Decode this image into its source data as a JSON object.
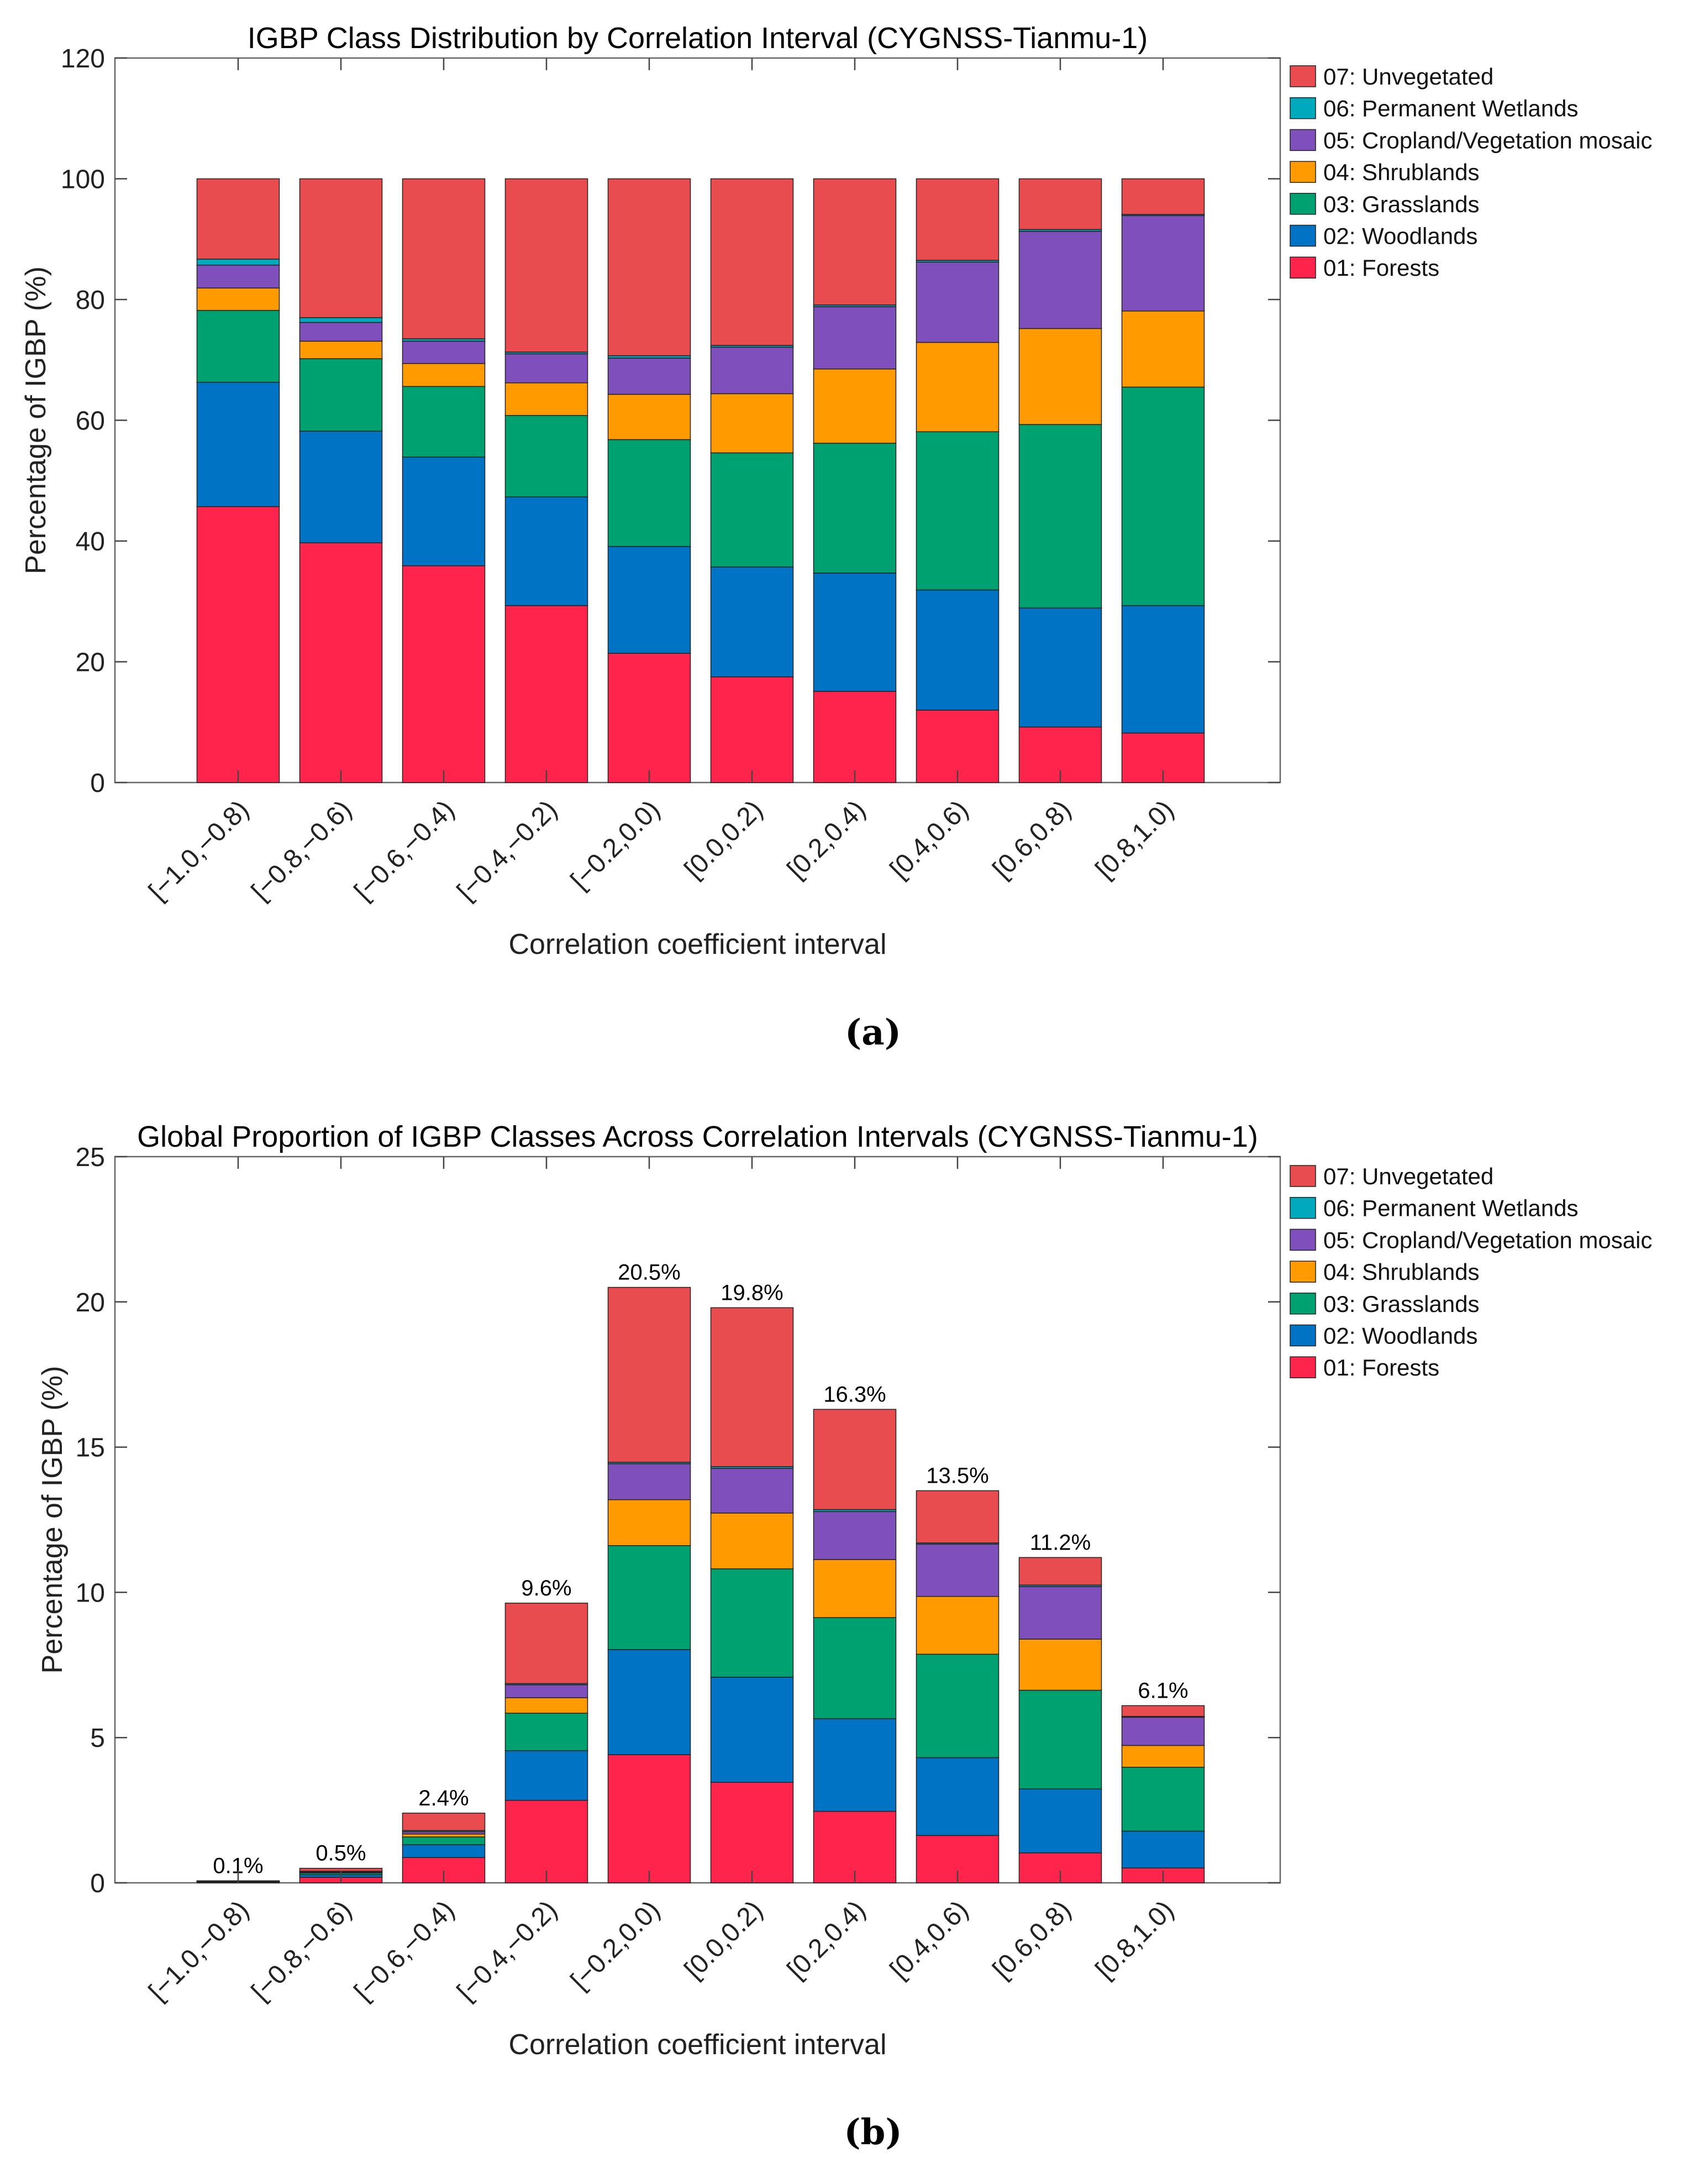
{
  "chart_data": [
    {
      "type": "bar",
      "stacked": true,
      "panel_label": "(a)",
      "title": "IGBP Class Distribution by Correlation Interval (CYGNSS-Tianmu-1)",
      "xlabel": "Correlation coefficient interval",
      "ylabel": "Percentage of IGBP (%)",
      "ylim": [
        0,
        120
      ],
      "yticks": [
        0,
        20,
        40,
        60,
        80,
        100,
        120
      ],
      "legend_position": "outside-top-right",
      "categories": [
        "[−1.0,−0.8)",
        "[−0.8,−0.6)",
        "[−0.6,−0.4)",
        "[−0.4,−0.2)",
        "[−0.2,0.0)",
        "[0.0,0.2)",
        "[0.2,0.4)",
        "[0.4,0.6)",
        "[0.6,0.8)",
        "[0.8,1.0)"
      ],
      "series": [
        {
          "name": "01: Forests",
          "color": "#FF244C",
          "values": [
            45.7,
            39.7,
            35.9,
            29.3,
            21.4,
            17.5,
            15.1,
            12.0,
            9.2,
            8.2
          ]
        },
        {
          "name": "02: Woodlands",
          "color": "#0073C4",
          "values": [
            20.6,
            18.5,
            18.0,
            18.0,
            17.7,
            18.2,
            19.6,
            19.9,
            19.7,
            21.1
          ]
        },
        {
          "name": "03: Grasslands",
          "color": "#00A171",
          "values": [
            11.9,
            12.0,
            11.7,
            13.5,
            17.7,
            18.9,
            21.5,
            26.2,
            30.4,
            36.2
          ]
        },
        {
          "name": "04: Shrublands",
          "color": "#FF9B00",
          "values": [
            3.7,
            2.9,
            3.8,
            5.4,
            7.5,
            9.8,
            12.3,
            14.8,
            15.9,
            12.6
          ]
        },
        {
          "name": "05: Cropland/Vegetation mosaic",
          "color": "#7F4FBC",
          "values": [
            3.8,
            3.1,
            3.7,
            4.8,
            6.0,
            7.7,
            10.3,
            13.3,
            16.1,
            15.8
          ]
        },
        {
          "name": "06: Permanent Wetlands",
          "color": "#00A9BC",
          "values": [
            1.0,
            0.8,
            0.4,
            0.3,
            0.4,
            0.3,
            0.3,
            0.3,
            0.3,
            0.2
          ]
        },
        {
          "name": "07: Unvegetated",
          "color": "#E84C4F",
          "values": [
            13.3,
            23.0,
            26.5,
            28.7,
            29.3,
            27.6,
            20.9,
            13.5,
            8.4,
            5.9
          ]
        }
      ],
      "data_labels": []
    },
    {
      "type": "bar",
      "stacked": true,
      "panel_label": "(b)",
      "title": "Global Proportion of IGBP Classes Across Correlation Intervals (CYGNSS-Tianmu-1)",
      "xlabel": "Correlation coefficient interval",
      "ylabel": "Percentage of IGBP (%)",
      "ylim": [
        0,
        25
      ],
      "yticks": [
        0,
        5,
        10,
        15,
        20,
        25
      ],
      "legend_position": "outside-top-right",
      "categories": [
        "[−1.0,−0.8)",
        "[−0.8,−0.6)",
        "[−0.6,−0.4)",
        "[−0.4,−0.2)",
        "[−0.2,0.0)",
        "[0.0,0.2)",
        "[0.2,0.4)",
        "[0.4,0.6)",
        "[0.6,0.8)",
        "[0.8,1.0)"
      ],
      "series": [
        {
          "name": "01: Forests",
          "color": "#FF244C",
          "values": [
            0.03,
            0.19,
            0.87,
            2.84,
            4.41,
            3.46,
            2.46,
            1.63,
            1.03,
            0.51
          ]
        },
        {
          "name": "02: Woodlands",
          "color": "#0073C4",
          "values": [
            0.015,
            0.09,
            0.44,
            1.71,
            3.62,
            3.62,
            3.19,
            2.68,
            2.2,
            1.27
          ]
        },
        {
          "name": "03: Grasslands",
          "color": "#00A171",
          "values": [
            0.008,
            0.06,
            0.27,
            1.29,
            3.58,
            3.73,
            3.48,
            3.56,
            3.4,
            2.2
          ]
        },
        {
          "name": "04: Shrublands",
          "color": "#FF9B00",
          "values": [
            0.003,
            0.02,
            0.1,
            0.53,
            1.58,
            1.92,
            2.0,
            1.99,
            1.76,
            0.75
          ]
        },
        {
          "name": "05: Cropland/Vegetation mosaic",
          "color": "#7F4FBC",
          "values": [
            0.003,
            0.03,
            0.08,
            0.45,
            1.24,
            1.54,
            1.65,
            1.8,
            1.81,
            0.97
          ]
        },
        {
          "name": "06: Permanent Wetlands",
          "color": "#00A9BC",
          "values": [
            0.001,
            0.01,
            0.04,
            0.04,
            0.05,
            0.06,
            0.07,
            0.04,
            0.05,
            0.03
          ]
        },
        {
          "name": "07: Unvegetated",
          "color": "#E84C4F",
          "values": [
            0.01,
            0.1,
            0.6,
            2.77,
            6.02,
            5.47,
            3.45,
            1.8,
            0.95,
            0.37
          ]
        }
      ],
      "data_labels": [
        "0.1%",
        "0.5%",
        "2.4%",
        "9.6%",
        "20.5%",
        "19.8%",
        "16.3%",
        "13.5%",
        "11.2%",
        "6.1%"
      ]
    }
  ]
}
